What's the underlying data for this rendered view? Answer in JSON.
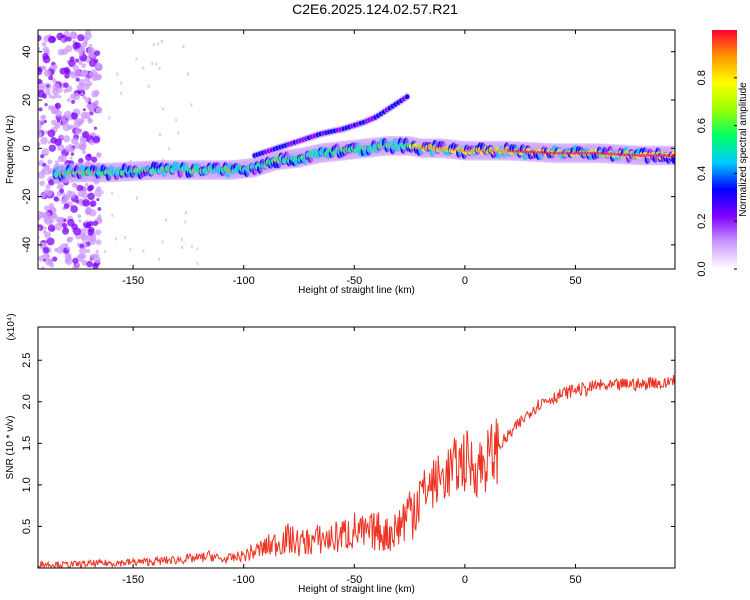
{
  "title": "C2E6.2025.124.02.57.R21",
  "chart_data": [
    {
      "type": "heatmap",
      "xlabel": "Height of straight line (km)",
      "ylabel": "Frequency (Hz)",
      "xlim": [
        -193,
        95
      ],
      "ylim": [
        -50,
        49
      ],
      "xticks": [
        -150,
        -100,
        -50,
        0,
        50
      ],
      "yticks": [
        -40,
        -20,
        0,
        20,
        40
      ],
      "colorbar": {
        "label": "Normalized spectral amplitude",
        "range": [
          0,
          1
        ],
        "ticks": [
          0.0,
          0.2,
          0.4,
          0.6,
          0.8
        ],
        "colors": [
          "#ffffff",
          "#cc99ff",
          "#7f00ff",
          "#0000ff",
          "#00ccff",
          "#00ff66",
          "#99ff00",
          "#ffff00",
          "#ff9900",
          "#ff0033"
        ]
      },
      "trace": {
        "name": "main frequency trace",
        "x": [
          -190,
          -175,
          -160,
          -140,
          -120,
          -105,
          -95,
          -85,
          -75,
          -65,
          -55,
          -45,
          -35,
          -25,
          -20,
          -10,
          0,
          20,
          40,
          60,
          80,
          95
        ],
        "y": [
          -11,
          -10,
          -10,
          -9,
          -9,
          -9,
          -8,
          -5,
          -4,
          -2,
          -1,
          0,
          1,
          1,
          0,
          0,
          -1,
          -1,
          -2,
          -2,
          -3,
          -3
        ]
      },
      "harmonic_trace": {
        "x": [
          -95,
          -85,
          -75,
          -65,
          -55,
          -45,
          -40,
          -35,
          -30,
          -25
        ],
        "y": [
          -3,
          0,
          3,
          6,
          8,
          11,
          13,
          16,
          19,
          22
        ]
      }
    },
    {
      "type": "line",
      "xlabel": "Height of straight line (km)",
      "ylabel": "SNR (10 * v/v)",
      "yscale_label": "(x10⁴)",
      "xlim": [
        -193,
        95
      ],
      "ylim": [
        0,
        2.9
      ],
      "xticks": [
        -150,
        -100,
        -50,
        0,
        50
      ],
      "yticks": [
        0.5,
        1.0,
        1.5,
        2.0,
        2.5
      ],
      "series": [
        {
          "color": "#ee3322",
          "x": [
            -193,
            -180,
            -170,
            -160,
            -150,
            -140,
            -130,
            -120,
            -115,
            -110,
            -105,
            -100,
            -95,
            -90,
            -85,
            -80,
            -75,
            -70,
            -65,
            -60,
            -55,
            -50,
            -45,
            -40,
            -35,
            -30,
            -25,
            -20,
            -15,
            -10,
            -5,
            0,
            5,
            10,
            15,
            20,
            25,
            30,
            35,
            40,
            45,
            50,
            55,
            60,
            65,
            70,
            75,
            80,
            85,
            90,
            95
          ],
          "y": [
            0.05,
            0.04,
            0.05,
            0.06,
            0.07,
            0.08,
            0.1,
            0.12,
            0.15,
            0.1,
            0.12,
            0.15,
            0.2,
            0.25,
            0.3,
            0.35,
            0.3,
            0.32,
            0.35,
            0.35,
            0.4,
            0.45,
            0.4,
            0.45,
            0.4,
            0.5,
            0.7,
            0.9,
            1.0,
            1.1,
            1.2,
            1.3,
            1.2,
            1.3,
            1.45,
            1.6,
            1.75,
            1.9,
            2.0,
            2.05,
            2.1,
            2.15,
            2.15,
            2.2,
            2.18,
            2.2,
            2.22,
            2.2,
            2.25,
            2.2,
            2.3
          ]
        }
      ]
    }
  ]
}
